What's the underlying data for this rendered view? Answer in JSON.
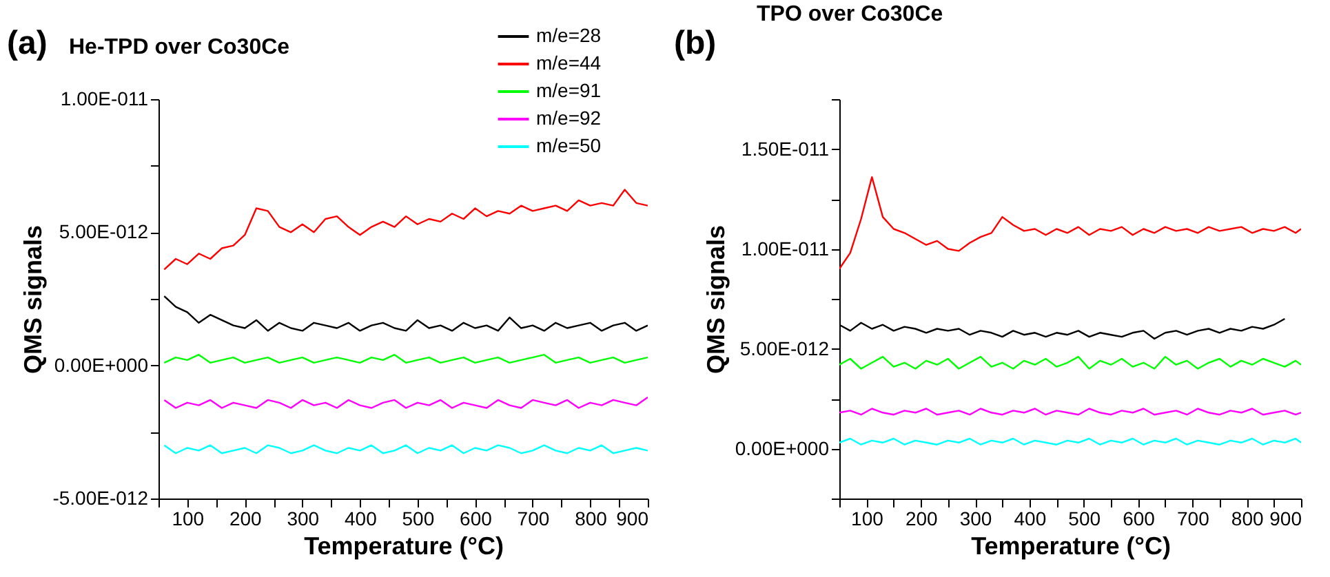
{
  "chart_data": [
    {
      "type": "line",
      "title": "He-TPD over Co30Ce",
      "annotations": [
        "(a)"
      ],
      "xlabel": "Temperature (°C)",
      "ylabel": "QMS signals",
      "x": [
        60,
        80,
        100,
        120,
        140,
        160,
        180,
        200,
        220,
        240,
        260,
        280,
        300,
        320,
        340,
        360,
        380,
        400,
        420,
        440,
        460,
        480,
        500,
        520,
        540,
        560,
        580,
        600,
        620,
        640,
        660,
        680,
        700,
        720,
        740,
        760,
        780,
        800,
        820,
        840,
        860,
        880,
        900
      ],
      "xlim": [
        50,
        900
      ],
      "xticks": [
        {
          "value": 50,
          "label": null
        },
        100,
        {
          "value": 150,
          "label": null
        },
        200,
        {
          "value": 250,
          "label": null
        },
        300,
        {
          "value": 350,
          "label": null
        },
        400,
        {
          "value": 450,
          "label": null
        },
        500,
        {
          "value": 550,
          "label": null
        },
        600,
        {
          "value": 650,
          "label": null
        },
        700,
        {
          "value": 750,
          "label": null
        },
        800,
        {
          "value": 850,
          "label": null
        },
        900
      ],
      "ylim": [
        -5e-12,
        1e-11
      ],
      "yticks": [
        {
          "value": -5e-12,
          "label": "-5.00E-012"
        },
        {
          "value": -2.5e-12,
          "label": null
        },
        {
          "value": 0,
          "label": "0.00E+000"
        },
        {
          "value": 2.5e-12,
          "label": null
        },
        {
          "value": 5e-12,
          "label": "5.00E-012"
        },
        {
          "value": 7.5e-12,
          "label": null
        },
        {
          "value": 1e-11,
          "label": "1.00E-011"
        }
      ],
      "grid": false,
      "legend": "top right",
      "series": [
        {
          "name": "m/e=28",
          "color": "#000000",
          "values": [
            2.6e-12,
            2.2e-12,
            2e-12,
            1.6e-12,
            1.9e-12,
            1.7e-12,
            1.5e-12,
            1.4e-12,
            1.7e-12,
            1.3e-12,
            1.6e-12,
            1.4e-12,
            1.3e-12,
            1.6e-12,
            1.5e-12,
            1.4e-12,
            1.6e-12,
            1.3e-12,
            1.5e-12,
            1.6e-12,
            1.4e-12,
            1.3e-12,
            1.7e-12,
            1.4e-12,
            1.5e-12,
            1.3e-12,
            1.6e-12,
            1.4e-12,
            1.5e-12,
            1.3e-12,
            1.8e-12,
            1.4e-12,
            1.5e-12,
            1.3e-12,
            1.6e-12,
            1.4e-12,
            1.5e-12,
            1.6e-12,
            1.3e-12,
            1.5e-12,
            1.6e-12,
            1.3e-12,
            1.5e-12
          ]
        },
        {
          "name": "m/e=44",
          "color": "#ff0000",
          "values": [
            3.6e-12,
            4e-12,
            3.8e-12,
            4.2e-12,
            4e-12,
            4.4e-12,
            4.5e-12,
            4.9e-12,
            5.9e-12,
            5.8e-12,
            5.2e-12,
            5e-12,
            5.3e-12,
            5e-12,
            5.5e-12,
            5.6e-12,
            5.2e-12,
            4.9e-12,
            5.2e-12,
            5.4e-12,
            5.2e-12,
            5.6e-12,
            5.3e-12,
            5.5e-12,
            5.4e-12,
            5.7e-12,
            5.5e-12,
            5.9e-12,
            5.6e-12,
            5.8e-12,
            5.7e-12,
            6e-12,
            5.8e-12,
            5.9e-12,
            6e-12,
            5.8e-12,
            6.2e-12,
            6e-12,
            6.1e-12,
            6e-12,
            6.6e-12,
            6.1e-12,
            6e-12
          ]
        },
        {
          "name": "m/e=91",
          "color": "#00ff00",
          "values": [
            1e-13,
            3e-13,
            2e-13,
            4e-13,
            1e-13,
            2e-13,
            3e-13,
            1e-13,
            2e-13,
            3e-13,
            1e-13,
            2e-13,
            3e-13,
            1e-13,
            2e-13,
            3e-13,
            2e-13,
            1e-13,
            3e-13,
            2e-13,
            4e-13,
            1e-13,
            2e-13,
            3e-13,
            1e-13,
            2e-13,
            3e-13,
            1e-13,
            2e-13,
            3e-13,
            1e-13,
            2e-13,
            3e-13,
            4e-13,
            1e-13,
            2e-13,
            3e-13,
            1e-13,
            2e-13,
            3e-13,
            1e-13,
            2e-13,
            3e-13
          ]
        },
        {
          "name": "m/e=92",
          "color": "#ff00ff",
          "values": [
            -1.3e-12,
            -1.6e-12,
            -1.4e-12,
            -1.5e-12,
            -1.3e-12,
            -1.6e-12,
            -1.4e-12,
            -1.5e-12,
            -1.6e-12,
            -1.3e-12,
            -1.4e-12,
            -1.6e-12,
            -1.3e-12,
            -1.5e-12,
            -1.4e-12,
            -1.6e-12,
            -1.3e-12,
            -1.5e-12,
            -1.6e-12,
            -1.4e-12,
            -1.3e-12,
            -1.6e-12,
            -1.4e-12,
            -1.5e-12,
            -1.3e-12,
            -1.6e-12,
            -1.4e-12,
            -1.5e-12,
            -1.6e-12,
            -1.3e-12,
            -1.5e-12,
            -1.6e-12,
            -1.3e-12,
            -1.4e-12,
            -1.5e-12,
            -1.3e-12,
            -1.6e-12,
            -1.4e-12,
            -1.5e-12,
            -1.3e-12,
            -1.4e-12,
            -1.5e-12,
            -1.2e-12
          ]
        },
        {
          "name": "m/e=50",
          "color": "#00ffff",
          "values": [
            -3e-12,
            -3.3e-12,
            -3.1e-12,
            -3.2e-12,
            -3e-12,
            -3.3e-12,
            -3.2e-12,
            -3.1e-12,
            -3.3e-12,
            -3e-12,
            -3.1e-12,
            -3.3e-12,
            -3.2e-12,
            -3e-12,
            -3.2e-12,
            -3.3e-12,
            -3.1e-12,
            -3.2e-12,
            -3e-12,
            -3.3e-12,
            -3.2e-12,
            -3e-12,
            -3.3e-12,
            -3.1e-12,
            -3.2e-12,
            -3e-12,
            -3.3e-12,
            -3.1e-12,
            -3.2e-12,
            -3e-12,
            -3.1e-12,
            -3.3e-12,
            -3.2e-12,
            -3e-12,
            -3.2e-12,
            -3.3e-12,
            -3.1e-12,
            -3.2e-12,
            -3e-12,
            -3.3e-12,
            -3.2e-12,
            -3.1e-12,
            -3.2e-12
          ]
        }
      ]
    },
    {
      "type": "line",
      "title": "TPO over Co30Ce",
      "annotations": [
        "(b)"
      ],
      "xlabel": "Temperature (°C)",
      "ylabel": "QMS signals",
      "x": [
        50,
        70,
        90,
        110,
        130,
        150,
        170,
        190,
        210,
        230,
        250,
        270,
        290,
        310,
        330,
        350,
        370,
        390,
        410,
        430,
        450,
        470,
        490,
        510,
        530,
        550,
        570,
        590,
        610,
        630,
        650,
        670,
        690,
        710,
        730,
        750,
        770,
        790,
        810,
        830,
        850,
        870,
        890,
        900
      ],
      "xlim": [
        50,
        900
      ],
      "xticks": [
        {
          "value": 50,
          "label": null
        },
        100,
        {
          "value": 150,
          "label": null
        },
        200,
        {
          "value": 250,
          "label": null
        },
        300,
        {
          "value": 350,
          "label": null
        },
        400,
        {
          "value": 450,
          "label": null
        },
        500,
        {
          "value": 550,
          "label": null
        },
        600,
        {
          "value": 650,
          "label": null
        },
        700,
        {
          "value": 750,
          "label": null
        },
        800,
        {
          "value": 850,
          "label": null
        },
        900
      ],
      "ylim": [
        -2.5e-12,
        1.75e-11
      ],
      "yticks": [
        {
          "value": -2.5e-12,
          "label": null
        },
        {
          "value": 0,
          "label": "0.00E+000"
        },
        {
          "value": 2.5e-12,
          "label": null
        },
        {
          "value": 5e-12,
          "label": "5.00E-012"
        },
        {
          "value": 7.5e-12,
          "label": null
        },
        {
          "value": 1e-11,
          "label": "1.00E-011"
        },
        {
          "value": 1.25e-11,
          "label": null
        },
        {
          "value": 1.5e-11,
          "label": "1.50E-011"
        },
        {
          "value": 1.75e-11,
          "label": null
        }
      ],
      "grid": false,
      "legend": "top right",
      "series": [
        {
          "name": "m/e=28",
          "color": "#000000",
          "values": [
            6.2e-12,
            5.9e-12,
            6.3e-12,
            6e-12,
            6.2e-12,
            5.9e-12,
            6.1e-12,
            6e-12,
            5.8e-12,
            6e-12,
            5.9e-12,
            6e-12,
            5.7e-12,
            5.9e-12,
            5.8e-12,
            5.6e-12,
            5.9e-12,
            5.7e-12,
            5.8e-12,
            5.6e-12,
            5.8e-12,
            5.7e-12,
            5.9e-12,
            5.6e-12,
            5.8e-12,
            5.7e-12,
            5.6e-12,
            5.8e-12,
            5.9e-12,
            5.5e-12,
            5.8e-12,
            5.9e-12,
            5.7e-12,
            5.9e-12,
            6e-12,
            5.8e-12,
            6e-12,
            5.9e-12,
            6.1e-12,
            6e-12,
            6.2e-12,
            6.5e-12,
            null,
            null
          ]
        },
        {
          "name": "m/e=44",
          "color": "#ff0000",
          "values": [
            9e-12,
            9.8e-12,
            1.15e-11,
            1.36e-11,
            1.16e-11,
            1.1e-11,
            1.08e-11,
            1.05e-11,
            1.02e-11,
            1.04e-11,
            1e-11,
            9.9e-12,
            1.03e-11,
            1.06e-11,
            1.08e-11,
            1.16e-11,
            1.12e-11,
            1.09e-11,
            1.1e-11,
            1.07e-11,
            1.1e-11,
            1.08e-11,
            1.11e-11,
            1.07e-11,
            1.1e-11,
            1.09e-11,
            1.11e-11,
            1.07e-11,
            1.1e-11,
            1.08e-11,
            1.11e-11,
            1.09e-11,
            1.1e-11,
            1.08e-11,
            1.11e-11,
            1.09e-11,
            1.1e-11,
            1.11e-11,
            1.08e-11,
            1.1e-11,
            1.09e-11,
            1.11e-11,
            1.08e-11,
            1.1e-11
          ]
        },
        {
          "name": "m/e=91",
          "color": "#00ff00",
          "values": [
            4.2e-12,
            4.5e-12,
            4e-12,
            4.3e-12,
            4.6e-12,
            4.1e-12,
            4.3e-12,
            4e-12,
            4.4e-12,
            4.2e-12,
            4.5e-12,
            4e-12,
            4.3e-12,
            4.6e-12,
            4.1e-12,
            4.3e-12,
            4e-12,
            4.4e-12,
            4.2e-12,
            4.5e-12,
            4.1e-12,
            4.3e-12,
            4.6e-12,
            4e-12,
            4.4e-12,
            4.2e-12,
            4.5e-12,
            4.1e-12,
            4.3e-12,
            4e-12,
            4.6e-12,
            4.2e-12,
            4.4e-12,
            4e-12,
            4.3e-12,
            4.5e-12,
            4.1e-12,
            4.4e-12,
            4.2e-12,
            4.5e-12,
            4.3e-12,
            4.1e-12,
            4.4e-12,
            4.2e-12
          ]
        },
        {
          "name": "m/e=92",
          "color": "#ff00ff",
          "values": [
            1.8e-12,
            1.9e-12,
            1.7e-12,
            2e-12,
            1.8e-12,
            1.7e-12,
            1.9e-12,
            1.8e-12,
            2e-12,
            1.7e-12,
            1.8e-12,
            1.9e-12,
            1.7e-12,
            2e-12,
            1.8e-12,
            1.7e-12,
            1.9e-12,
            1.8e-12,
            2e-12,
            1.7e-12,
            1.9e-12,
            1.8e-12,
            1.7e-12,
            2e-12,
            1.8e-12,
            1.7e-12,
            1.9e-12,
            1.8e-12,
            2e-12,
            1.7e-12,
            1.8e-12,
            1.9e-12,
            1.7e-12,
            2e-12,
            1.8e-12,
            1.7e-12,
            1.9e-12,
            1.8e-12,
            2e-12,
            1.7e-12,
            1.8e-12,
            1.9e-12,
            1.7e-12,
            1.8e-12
          ]
        },
        {
          "name": "m/e=50",
          "color": "#00ffff",
          "values": [
            3e-13,
            5e-13,
            2e-13,
            4e-13,
            3e-13,
            5e-13,
            2e-13,
            4e-13,
            3e-13,
            2e-13,
            4e-13,
            3e-13,
            5e-13,
            2e-13,
            4e-13,
            3e-13,
            5e-13,
            2e-13,
            4e-13,
            3e-13,
            2e-13,
            4e-13,
            3e-13,
            5e-13,
            2e-13,
            4e-13,
            3e-13,
            5e-13,
            2e-13,
            4e-13,
            3e-13,
            5e-13,
            2e-13,
            4e-13,
            3e-13,
            2e-13,
            4e-13,
            3e-13,
            5e-13,
            2e-13,
            4e-13,
            3e-13,
            5e-13,
            3e-13
          ]
        }
      ]
    }
  ]
}
